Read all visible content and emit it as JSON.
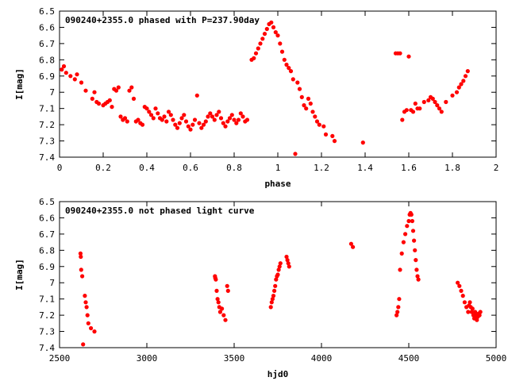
{
  "chart_data": [
    {
      "type": "scatter",
      "title": "090240+2355.0 phased with P=237.90day",
      "xlabel": "phase",
      "ylabel": "I[mag]",
      "xlim": [
        0,
        2
      ],
      "ylim": [
        6.5,
        7.4
      ],
      "y_inverted": true,
      "x_ticks": [
        "0",
        "0.2",
        "0.4",
        "0.6",
        "0.8",
        "1",
        "1.2",
        "1.4",
        "1.6",
        "1.8",
        "2"
      ],
      "y_ticks": [
        "6.5",
        "6.6",
        "6.7",
        "6.8",
        "6.9",
        "7",
        "7.1",
        "7.2",
        "7.3",
        "7.4"
      ],
      "marker_color": "#ff0000",
      "marker": "filled-circle",
      "points": [
        [
          0.01,
          6.86
        ],
        [
          0.02,
          6.84
        ],
        [
          0.03,
          6.88
        ],
        [
          0.05,
          6.9
        ],
        [
          0.07,
          6.92
        ],
        [
          0.08,
          6.89
        ],
        [
          0.1,
          6.94
        ],
        [
          0.12,
          6.99
        ],
        [
          0.15,
          7.04
        ],
        [
          0.16,
          7.0
        ],
        [
          0.17,
          7.06
        ],
        [
          0.18,
          7.07
        ],
        [
          0.2,
          7.08
        ],
        [
          0.21,
          7.07
        ],
        [
          0.22,
          7.06
        ],
        [
          0.23,
          7.05
        ],
        [
          0.24,
          7.09
        ],
        [
          0.25,
          6.98
        ],
        [
          0.26,
          6.99
        ],
        [
          0.27,
          6.97
        ],
        [
          0.28,
          7.15
        ],
        [
          0.29,
          7.17
        ],
        [
          0.3,
          7.16
        ],
        [
          0.31,
          7.18
        ],
        [
          0.32,
          6.99
        ],
        [
          0.33,
          6.97
        ],
        [
          0.34,
          7.04
        ],
        [
          0.35,
          7.18
        ],
        [
          0.36,
          7.17
        ],
        [
          0.37,
          7.19
        ],
        [
          0.38,
          7.2
        ],
        [
          0.39,
          7.09
        ],
        [
          0.4,
          7.1
        ],
        [
          0.41,
          7.12
        ],
        [
          0.42,
          7.14
        ],
        [
          0.43,
          7.16
        ],
        [
          0.44,
          7.1
        ],
        [
          0.45,
          7.13
        ],
        [
          0.46,
          7.16
        ],
        [
          0.47,
          7.17
        ],
        [
          0.48,
          7.15
        ],
        [
          0.49,
          7.18
        ],
        [
          0.5,
          7.12
        ],
        [
          0.51,
          7.14
        ],
        [
          0.52,
          7.17
        ],
        [
          0.53,
          7.2
        ],
        [
          0.54,
          7.22
        ],
        [
          0.55,
          7.19
        ],
        [
          0.56,
          7.16
        ],
        [
          0.57,
          7.14
        ],
        [
          0.58,
          7.18
        ],
        [
          0.59,
          7.21
        ],
        [
          0.6,
          7.23
        ],
        [
          0.61,
          7.2
        ],
        [
          0.62,
          7.17
        ],
        [
          0.63,
          7.02
        ],
        [
          0.64,
          7.19
        ],
        [
          0.65,
          7.22
        ],
        [
          0.66,
          7.2
        ],
        [
          0.67,
          7.18
        ],
        [
          0.68,
          7.15
        ],
        [
          0.69,
          7.13
        ],
        [
          0.7,
          7.15
        ],
        [
          0.71,
          7.17
        ],
        [
          0.72,
          7.14
        ],
        [
          0.73,
          7.12
        ],
        [
          0.74,
          7.16
        ],
        [
          0.75,
          7.19
        ],
        [
          0.76,
          7.21
        ],
        [
          0.77,
          7.18
        ],
        [
          0.78,
          7.16
        ],
        [
          0.79,
          7.14
        ],
        [
          0.8,
          7.17
        ],
        [
          0.81,
          7.19
        ],
        [
          0.82,
          7.17
        ],
        [
          0.83,
          7.13
        ],
        [
          0.84,
          7.15
        ],
        [
          0.85,
          7.18
        ],
        [
          0.86,
          7.17
        ],
        [
          0.88,
          6.8
        ],
        [
          0.89,
          6.79
        ],
        [
          0.9,
          6.76
        ],
        [
          0.91,
          6.73
        ],
        [
          0.92,
          6.7
        ],
        [
          0.93,
          6.67
        ],
        [
          0.94,
          6.64
        ],
        [
          0.95,
          6.61
        ],
        [
          0.96,
          6.58
        ],
        [
          0.97,
          6.57
        ],
        [
          0.98,
          6.6
        ],
        [
          0.99,
          6.63
        ],
        [
          1.0,
          6.65
        ],
        [
          1.01,
          6.7
        ],
        [
          1.02,
          6.75
        ],
        [
          1.03,
          6.8
        ],
        [
          1.04,
          6.83
        ],
        [
          1.05,
          6.85
        ],
        [
          1.06,
          6.87
        ],
        [
          1.07,
          6.92
        ],
        [
          1.08,
          7.38
        ],
        [
          1.09,
          6.94
        ],
        [
          1.1,
          6.98
        ],
        [
          1.11,
          7.03
        ],
        [
          1.12,
          7.08
        ],
        [
          1.13,
          7.1
        ],
        [
          1.14,
          7.04
        ],
        [
          1.15,
          7.07
        ],
        [
          1.16,
          7.12
        ],
        [
          1.17,
          7.15
        ],
        [
          1.18,
          7.18
        ],
        [
          1.19,
          7.2
        ],
        [
          1.21,
          7.21
        ],
        [
          1.22,
          7.26
        ],
        [
          1.25,
          7.27
        ],
        [
          1.26,
          7.3
        ],
        [
          1.39,
          7.31
        ],
        [
          1.54,
          6.76
        ],
        [
          1.55,
          6.76
        ],
        [
          1.56,
          6.76
        ],
        [
          1.57,
          7.17
        ],
        [
          1.58,
          7.12
        ],
        [
          1.59,
          7.11
        ],
        [
          1.6,
          6.78
        ],
        [
          1.61,
          7.11
        ],
        [
          1.62,
          7.12
        ],
        [
          1.63,
          7.07
        ],
        [
          1.64,
          7.1
        ],
        [
          1.65,
          7.1
        ],
        [
          1.67,
          7.06
        ],
        [
          1.69,
          7.05
        ],
        [
          1.7,
          7.03
        ],
        [
          1.71,
          7.04
        ],
        [
          1.72,
          7.06
        ],
        [
          1.73,
          7.08
        ],
        [
          1.74,
          7.1
        ],
        [
          1.75,
          7.12
        ],
        [
          1.77,
          7.06
        ],
        [
          1.8,
          7.02
        ],
        [
          1.82,
          7.0
        ],
        [
          1.83,
          6.97
        ],
        [
          1.84,
          6.95
        ],
        [
          1.85,
          6.93
        ],
        [
          1.86,
          6.9
        ],
        [
          1.87,
          6.87
        ]
      ]
    },
    {
      "type": "scatter",
      "title": "090240+2355.0 not phased light curve",
      "xlabel": "hjd0",
      "ylabel": "I[mag]",
      "xlim": [
        2500,
        5000
      ],
      "ylim": [
        6.5,
        7.4
      ],
      "y_inverted": true,
      "x_ticks": [
        "2500",
        "3000",
        "3500",
        "4000",
        "4500",
        "5000"
      ],
      "y_ticks": [
        "6.5",
        "6.6",
        "6.7",
        "6.8",
        "6.9",
        "7",
        "7.1",
        "7.2",
        "7.3",
        "7.4"
      ],
      "marker_color": "#ff0000",
      "marker": "filled-circle",
      "points": [
        [
          2620,
          6.82
        ],
        [
          2622,
          6.84
        ],
        [
          2624,
          6.92
        ],
        [
          2630,
          6.96
        ],
        [
          2635,
          7.38
        ],
        [
          2645,
          7.08
        ],
        [
          2650,
          7.12
        ],
        [
          2655,
          7.15
        ],
        [
          2660,
          7.2
        ],
        [
          2665,
          7.25
        ],
        [
          2680,
          7.28
        ],
        [
          2700,
          7.3
        ],
        [
          3390,
          6.96
        ],
        [
          3392,
          6.97
        ],
        [
          3395,
          6.98
        ],
        [
          3400,
          7.05
        ],
        [
          3405,
          7.1
        ],
        [
          3410,
          7.12
        ],
        [
          3415,
          7.15
        ],
        [
          3420,
          7.18
        ],
        [
          3430,
          7.16
        ],
        [
          3440,
          7.2
        ],
        [
          3450,
          7.23
        ],
        [
          3460,
          7.02
        ],
        [
          3465,
          7.05
        ],
        [
          3710,
          7.15
        ],
        [
          3715,
          7.12
        ],
        [
          3720,
          7.1
        ],
        [
          3725,
          7.08
        ],
        [
          3730,
          7.05
        ],
        [
          3735,
          7.02
        ],
        [
          3740,
          6.98
        ],
        [
          3745,
          6.96
        ],
        [
          3750,
          6.95
        ],
        [
          3755,
          6.92
        ],
        [
          3760,
          6.9
        ],
        [
          3765,
          6.88
        ],
        [
          3800,
          6.84
        ],
        [
          3805,
          6.86
        ],
        [
          3810,
          6.88
        ],
        [
          3815,
          6.9
        ],
        [
          4170,
          6.76
        ],
        [
          4180,
          6.78
        ],
        [
          4430,
          7.2
        ],
        [
          4435,
          7.18
        ],
        [
          4440,
          7.15
        ],
        [
          4445,
          7.1
        ],
        [
          4450,
          6.92
        ],
        [
          4460,
          6.82
        ],
        [
          4470,
          6.75
        ],
        [
          4480,
          6.7
        ],
        [
          4490,
          6.65
        ],
        [
          4500,
          6.62
        ],
        [
          4505,
          6.58
        ],
        [
          4510,
          6.57
        ],
        [
          4515,
          6.58
        ],
        [
          4520,
          6.62
        ],
        [
          4525,
          6.68
        ],
        [
          4530,
          6.74
        ],
        [
          4535,
          6.8
        ],
        [
          4540,
          6.86
        ],
        [
          4545,
          6.92
        ],
        [
          4550,
          6.96
        ],
        [
          4555,
          6.98
        ],
        [
          4780,
          7.0
        ],
        [
          4790,
          7.02
        ],
        [
          4800,
          7.05
        ],
        [
          4810,
          7.08
        ],
        [
          4820,
          7.12
        ],
        [
          4830,
          7.15
        ],
        [
          4840,
          7.18
        ],
        [
          4845,
          7.14
        ],
        [
          4850,
          7.12
        ],
        [
          4855,
          7.15
        ],
        [
          4860,
          7.18
        ],
        [
          4865,
          7.16
        ],
        [
          4870,
          7.2
        ],
        [
          4875,
          7.22
        ],
        [
          4880,
          7.18
        ],
        [
          4885,
          7.2
        ],
        [
          4890,
          7.23
        ],
        [
          4895,
          7.21
        ],
        [
          4900,
          7.19
        ],
        [
          4905,
          7.2
        ],
        [
          4910,
          7.18
        ]
      ]
    }
  ]
}
